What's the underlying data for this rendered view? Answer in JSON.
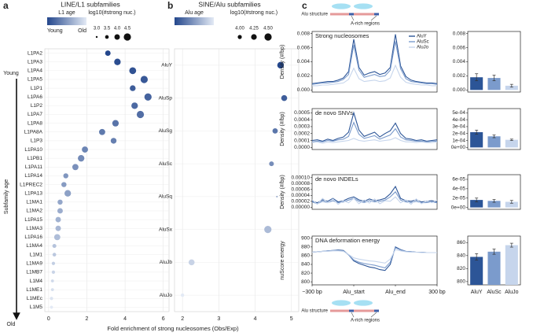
{
  "chart_data": [
    {
      "type": "dot",
      "panel": "a",
      "title": "LINE/L1 subfamilies",
      "color_title": "L1 age",
      "color_labels": [
        "Young",
        "Old"
      ],
      "colorscale": [
        "#24478c",
        "#e3eaf5"
      ],
      "size_title": "log10(#strong nuc.)",
      "size_legend": [
        {
          "value": 3,
          "label": "3.0"
        },
        {
          "value": 3.5,
          "label": "3.5"
        },
        {
          "value": 4,
          "label": "4.0"
        },
        {
          "value": 4.5,
          "label": "4.5"
        }
      ],
      "ylabel": "Subfamily age",
      "yside": [
        "Young",
        "Old"
      ],
      "xlabel": "Fold enrichment of strong nucleosomes (Obs/Exp)",
      "categories": [
        "L1PA2",
        "L1PA3",
        "L1PA4",
        "L1PA5",
        "L1P1",
        "L1PA6",
        "L1P2",
        "L1PA7",
        "L1PA8",
        "L1PA8A",
        "L1P3",
        "L1PA10",
        "L1PB1",
        "L1PA11",
        "L1PA14",
        "L1PREC2",
        "L1PA13",
        "L1MA1",
        "L1MA2",
        "L1PA15",
        "L1MA3",
        "L1PA16",
        "L1MA4",
        "L1M1",
        "L1MA9",
        "L1MB7",
        "L1M4",
        "L1ME1",
        "L1MEc",
        "L1M5"
      ],
      "values": [
        3.1,
        3.6,
        4.4,
        5.0,
        4.4,
        5.2,
        4.5,
        4.8,
        3.5,
        2.8,
        3.4,
        1.9,
        1.7,
        1.4,
        0.9,
        0.8,
        1.0,
        0.6,
        0.6,
        0.5,
        0.5,
        0.45,
        0.3,
        0.3,
        0.25,
        0.25,
        0.2,
        0.2,
        0.15,
        0.15
      ],
      "sizes": [
        4.0,
        4.3,
        4.4,
        4.5,
        4.1,
        4.5,
        4.3,
        4.5,
        4.3,
        4.2,
        4.1,
        4.2,
        4.3,
        4.2,
        3.9,
        3.9,
        4.3,
        3.9,
        4.0,
        4.0,
        4.0,
        4.2,
        3.6,
        3.5,
        3.4,
        3.4,
        3.3,
        3.3,
        3.4,
        3.3
      ],
      "xlim": [
        -0.2,
        6.3
      ],
      "xticks": [
        0,
        2,
        4,
        6
      ],
      "grid": true
    },
    {
      "type": "dot",
      "panel": "b",
      "title": "SINE/Alu subfamilies",
      "color_title": "Alu age",
      "colorscale": [
        "#24478c",
        "#e3eaf5"
      ],
      "size_title": "log10(#strong nuc.)",
      "size_legend": [
        {
          "value": 4,
          "label": "4.00"
        },
        {
          "value": 4.25,
          "label": "4.25"
        },
        {
          "value": 4.5,
          "label": "4.50"
        }
      ],
      "categories": [
        "AluY",
        "AluSp",
        "AluSg",
        "AluSc",
        "AluSq",
        "AluSx",
        "AluJb",
        "AluJo"
      ],
      "values": [
        4.7,
        4.8,
        4.55,
        4.45,
        4.6,
        4.35,
        2.25,
        2.0
      ],
      "sizes": [
        4.4,
        4.3,
        4.2,
        4.1,
        3.6,
        4.5,
        4.3,
        3.9
      ],
      "xlim": [
        1.78,
        5.2
      ],
      "xticks": [
        2,
        3,
        4,
        5
      ],
      "grid": true
    },
    {
      "type": "line",
      "panel": "c",
      "title": "Strong nucleosomes",
      "ylabel": "Density (#/bp)",
      "annotations": {
        "structure": "Alu structure",
        "regions": "A-rich regions"
      },
      "xlim": [
        0,
        24
      ],
      "ylim": [
        -0.0003,
        0.0083
      ],
      "legend": "upper right",
      "yticks": [
        {
          "value": 0,
          "label": "0.000"
        },
        {
          "value": 0.002,
          "label": "0.002"
        },
        {
          "value": 0.004,
          "label": "0.004"
        },
        {
          "value": 0.006,
          "label": "0.006"
        },
        {
          "value": 0.008,
          "label": "0.008"
        }
      ],
      "series": [
        {
          "name": "AluY",
          "color": "#2c5597",
          "values": [
            0.0009,
            0.001,
            0.0011,
            0.0012,
            0.0012,
            0.0014,
            0.0017,
            0.0026,
            0.0072,
            0.0032,
            0.0021,
            0.0024,
            0.0026,
            0.0022,
            0.0024,
            0.0032,
            0.0079,
            0.0034,
            0.0019,
            0.0014,
            0.0012,
            0.0011,
            0.001,
            0.001,
            0.0009
          ]
        },
        {
          "name": "AluSc",
          "color": "#7b9bcc",
          "values": [
            0.0008,
            0.0009,
            0.001,
            0.001,
            0.0011,
            0.0012,
            0.0015,
            0.0022,
            0.0064,
            0.0028,
            0.0018,
            0.002,
            0.0022,
            0.0019,
            0.002,
            0.0028,
            0.0069,
            0.003,
            0.0016,
            0.0012,
            0.0011,
            0.001,
            0.0009,
            0.0009,
            0.0008
          ]
        },
        {
          "name": "AluJo",
          "color": "#c6d5ec",
          "values": [
            0.0006,
            0.0006,
            0.0007,
            0.0007,
            0.0008,
            0.0009,
            0.001,
            0.0015,
            0.0031,
            0.0016,
            0.0012,
            0.0013,
            0.0014,
            0.0012,
            0.0013,
            0.0017,
            0.0035,
            0.0018,
            0.0011,
            0.0009,
            0.0008,
            0.0007,
            0.0007,
            0.0006,
            0.0006
          ]
        }
      ]
    },
    {
      "type": "bar",
      "ylim": [
        -0.0003,
        0.0083
      ],
      "yticks": [
        {
          "value": 0,
          "label": "0.000"
        },
        {
          "value": 0.002,
          "label": "0.002"
        },
        {
          "value": 0.004,
          "label": "0.004"
        },
        {
          "value": 0.006,
          "label": "0.006"
        },
        {
          "value": 0.008,
          "label": "0.008"
        }
      ],
      "values": [
        0.0018,
        0.0017,
        0.0006
      ],
      "errors": [
        0.0005,
        0.0004,
        0.0002
      ],
      "colors": [
        "#2c5597",
        "#7b9bcc",
        "#c6d5ec"
      ]
    },
    {
      "type": "line",
      "title": "de novo SNVs",
      "ylabel": "Density (#/bp)",
      "xlim": [
        0,
        24
      ],
      "ylim": [
        -3e-05,
        0.00056
      ],
      "yticks": [
        {
          "value": 0,
          "label": "0.0000"
        },
        {
          "value": 0.0001,
          "label": "0.0001"
        },
        {
          "value": 0.0002,
          "label": "0.0002"
        },
        {
          "value": 0.0003,
          "label": "0.0003"
        },
        {
          "value": 0.0004,
          "label": "0.0004"
        },
        {
          "value": 0.0005,
          "label": "0.0005"
        }
      ],
      "series": [
        {
          "color": "#2c5597",
          "values": [
            0.0001,
            0.00011,
            9e-05,
            0.00012,
            0.0001,
            0.00013,
            0.00015,
            0.00022,
            0.0005,
            0.00025,
            0.00016,
            0.00019,
            0.00022,
            0.00015,
            0.0002,
            0.00024,
            0.00035,
            0.0002,
            0.00013,
            0.00012,
            0.0001,
            0.00011,
            9e-05,
            0.0001,
            0.00011
          ]
        },
        {
          "color": "#7b9bcc",
          "values": [
            8e-05,
            9e-05,
            8e-05,
            0.0001,
            9e-05,
            0.00011,
            0.00012,
            0.00016,
            0.00036,
            0.00019,
            0.00013,
            0.00015,
            0.00017,
            0.00012,
            0.00015,
            0.00018,
            0.00027,
            0.00015,
            0.00011,
            0.0001,
            9e-05,
            9e-05,
            8e-05,
            9e-05,
            9e-05
          ]
        },
        {
          "color": "#c6d5ec",
          "values": [
            7e-05,
            8e-05,
            6e-05,
            8e-05,
            7e-05,
            8e-05,
            9e-05,
            0.0001,
            0.00013,
            0.0001,
            9e-05,
            0.0001,
            0.00011,
            9e-05,
            0.0001,
            0.00011,
            0.00014,
            0.0001,
            8e-05,
            8e-05,
            7e-05,
            8e-05,
            7e-05,
            7e-05,
            8e-05
          ]
        }
      ]
    },
    {
      "type": "bar",
      "ylim": [
        -3e-05,
        0.00056
      ],
      "yticks": [
        {
          "value": 0,
          "label": "0e+00"
        },
        {
          "value": 0.0001,
          "label": "1e-04"
        },
        {
          "value": 0.0002,
          "label": "2e-04"
        },
        {
          "value": 0.0003,
          "label": "3e-04"
        },
        {
          "value": 0.0004,
          "label": "4e-04"
        },
        {
          "value": 0.0005,
          "label": "5e-04"
        }
      ],
      "values": [
        0.00022,
        0.00016,
        0.00011
      ],
      "errors": [
        3e-05,
        2e-05,
        1e-05
      ],
      "colors": [
        "#2c5597",
        "#7b9bcc",
        "#c6d5ec"
      ]
    },
    {
      "type": "line",
      "title": "de novo INDELs",
      "ylabel": "Density (#/bp)",
      "xlim": [
        0,
        24
      ],
      "ylim": [
        -7e-06,
        0.00011
      ],
      "yticks": [
        {
          "value": 0,
          "label": "0.00000"
        },
        {
          "value": 2e-05,
          "label": "0.00002"
        },
        {
          "value": 4e-05,
          "label": "0.00004"
        },
        {
          "value": 6e-05,
          "label": "0.00006"
        },
        {
          "value": 8e-05,
          "label": "0.00008"
        },
        {
          "value": 0.0001,
          "label": "0.00010"
        }
      ],
      "series": [
        {
          "color": "#2c5597",
          "values": [
            2e-05,
            1.5e-05,
            2.5e-05,
            2e-05,
            3e-05,
            1.8e-05,
            2.2e-05,
            3e-05,
            3.5e-05,
            2.5e-05,
            2e-05,
            2.8e-05,
            2.2e-05,
            2.5e-05,
            3e-05,
            4.5e-05,
            7e-05,
            3e-05,
            2.2e-05,
            2e-05,
            2.5e-05,
            1.8e-05,
            2e-05,
            2.2e-05,
            1.8e-05
          ]
        },
        {
          "color": "#7b9bcc",
          "values": [
            1.8e-05,
            1.2e-05,
            2e-05,
            1.6e-05,
            2.2e-05,
            1.5e-05,
            1.8e-05,
            2.4e-05,
            3e-05,
            2e-05,
            1.6e-05,
            2.2e-05,
            1.8e-05,
            2e-05,
            2.4e-05,
            3.5e-05,
            5.2e-05,
            2.4e-05,
            1.8e-05,
            1.6e-05,
            2e-05,
            1.5e-05,
            1.6e-05,
            1.8e-05,
            1.5e-05
          ]
        },
        {
          "color": "#c6d5ec",
          "values": [
            2.5e-05,
            1e-05,
            3e-05,
            1.5e-05,
            2.8e-05,
            1e-05,
            2.2e-05,
            1.5e-05,
            3e-05,
            1.2e-05,
            2.5e-05,
            1.4e-05,
            2.8e-05,
            1.2e-05,
            2.2e-05,
            2e-05,
            3.5e-05,
            1.5e-05,
            2.5e-05,
            1e-05,
            2.8e-05,
            1.2e-05,
            2.2e-05,
            1.5e-05,
            2.4e-05
          ]
        }
      ]
    },
    {
      "type": "bar",
      "ylim": [
        -4e-06,
        7e-05
      ],
      "yticks": [
        {
          "value": 0,
          "label": "0e+00"
        },
        {
          "value": 2e-05,
          "label": "2e-05"
        },
        {
          "value": 4e-05,
          "label": "4e-05"
        },
        {
          "value": 6e-05,
          "label": "6e-05"
        }
      ],
      "values": [
        1.6e-05,
        1.4e-05,
        1.2e-05
      ],
      "errors": [
        4e-06,
        3e-06,
        3e-06
      ],
      "colors": [
        "#2c5597",
        "#7b9bcc",
        "#c6d5ec"
      ]
    },
    {
      "type": "line",
      "title": "DNA deformation energy",
      "ylabel": "nuScore energy",
      "annotations": {
        "structure": "Alu structure",
        "regions": "A-rich regions"
      },
      "xlim": [
        0,
        24
      ],
      "ylim": [
        793,
        905
      ],
      "yticks": [
        800,
        820,
        840,
        860,
        880,
        900
      ],
      "xticks": [
        {
          "value": 0,
          "label": "−300 bp"
        },
        {
          "value": 8,
          "label": "Alu_start"
        },
        {
          "value": 16,
          "label": "Alu_end"
        },
        {
          "value": 24,
          "label": "300 bp"
        }
      ],
      "series": [
        {
          "color": "#2c5597",
          "values": [
            868,
            869,
            870,
            871,
            872,
            873,
            872,
            862,
            848,
            842,
            838,
            834,
            832,
            828,
            826,
            840,
            880,
            874,
            870,
            869,
            868,
            868,
            867,
            867,
            867
          ]
        },
        {
          "color": "#7b9bcc",
          "values": [
            868,
            869,
            870,
            871,
            872,
            872,
            871,
            862,
            850,
            845,
            842,
            840,
            838,
            835,
            832,
            845,
            878,
            873,
            870,
            869,
            868,
            868,
            867,
            867,
            867
          ]
        },
        {
          "color": "#c6d5ec",
          "values": [
            868,
            869,
            870,
            870,
            871,
            871,
            870,
            863,
            855,
            852,
            850,
            848,
            847,
            845,
            843,
            852,
            874,
            871,
            869,
            868,
            868,
            867,
            867,
            867,
            867
          ]
        }
      ]
    },
    {
      "type": "bar",
      "ylim": [
        795,
        870
      ],
      "yticks": [
        800,
        820,
        840,
        860
      ],
      "categories": [
        "AluY",
        "AluSc",
        "AluJo"
      ],
      "values": [
        838,
        846,
        856
      ],
      "errors": [
        5,
        4,
        3
      ],
      "colors": [
        "#2c5597",
        "#7b9bcc",
        "#c6d5ec"
      ]
    }
  ]
}
